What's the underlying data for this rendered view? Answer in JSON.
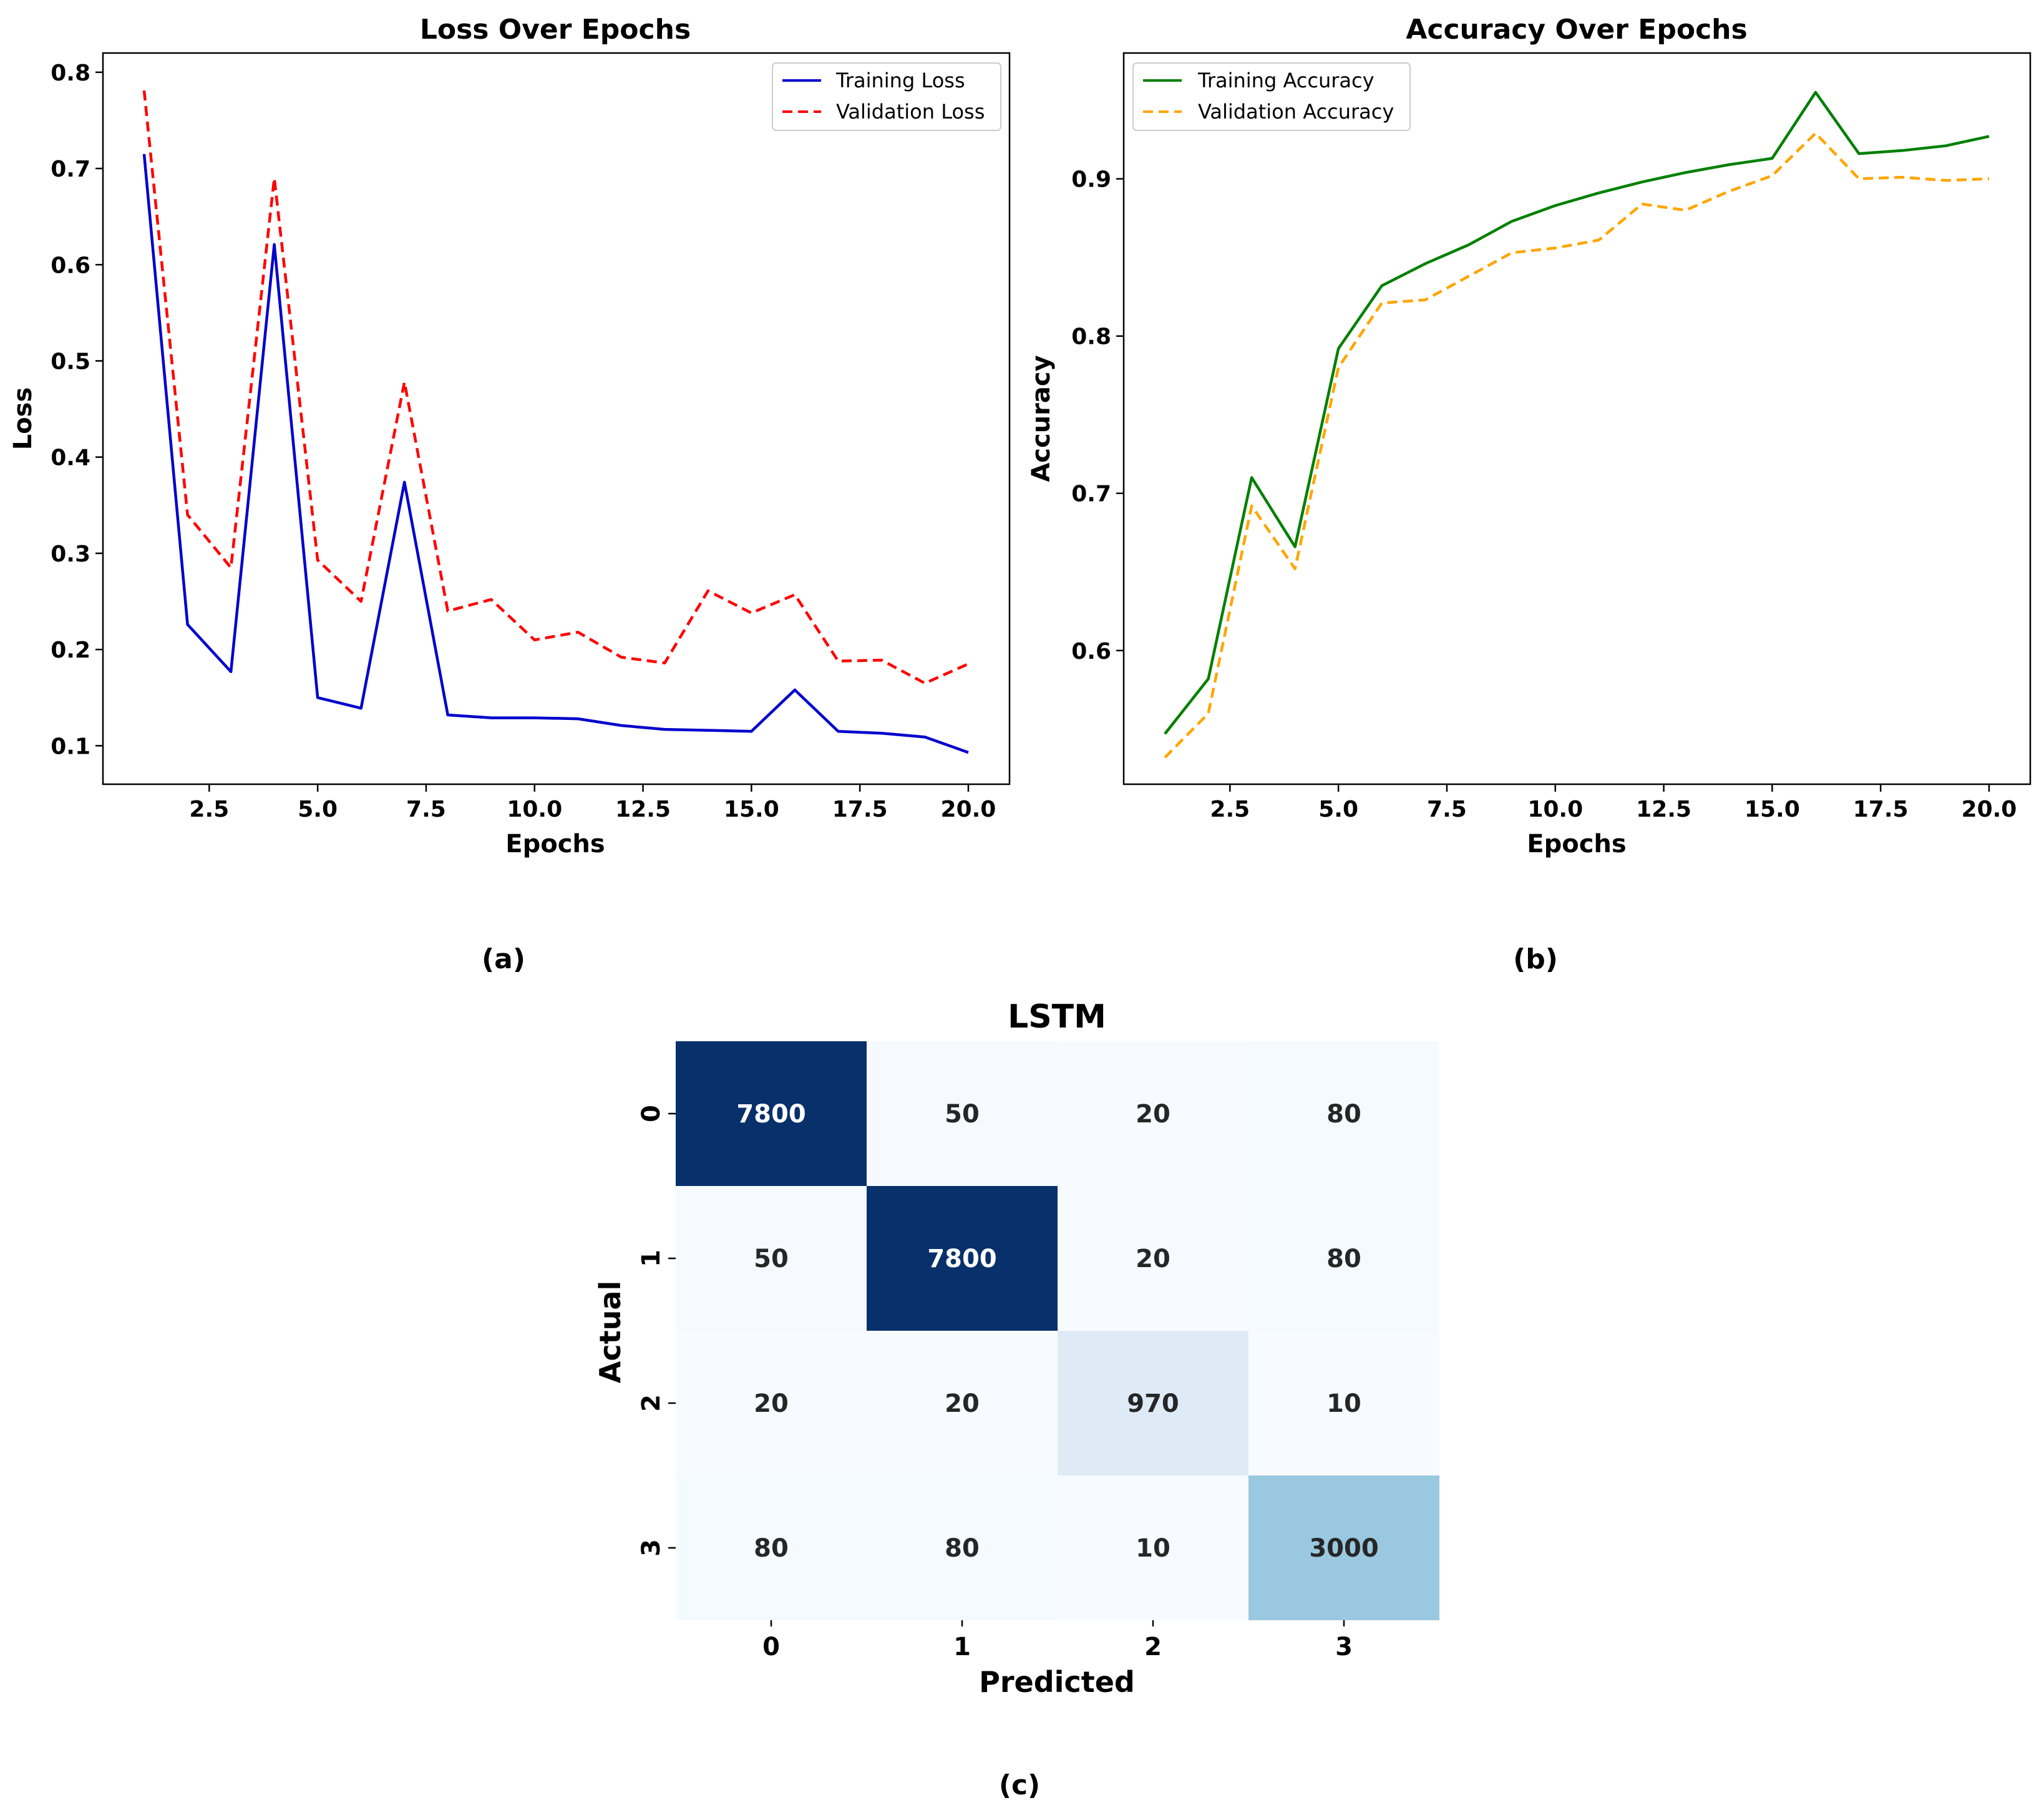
{
  "chart_data": [
    {
      "id": "loss",
      "type": "line",
      "title": "Loss Over Epochs",
      "xlabel": "Epochs",
      "ylabel": "Loss",
      "xlim": [
        0.05,
        20.95
      ],
      "ylim": [
        0.06,
        0.82
      ],
      "xticks": [
        "2.5",
        "5.0",
        "7.5",
        "10.0",
        "12.5",
        "15.0",
        "17.5",
        "20.0"
      ],
      "yticks": [
        "0.1",
        "0.2",
        "0.3",
        "0.4",
        "0.5",
        "0.6",
        "0.7",
        "0.8"
      ],
      "x": [
        1,
        2,
        3,
        4,
        5,
        6,
        7,
        8,
        9,
        10,
        11,
        12,
        13,
        14,
        15,
        16,
        17,
        18,
        19,
        20
      ],
      "legend": "top-right",
      "series": [
        {
          "name": "Training Loss",
          "color": "#0000cc",
          "style": "solid",
          "values": [
            0.715,
            0.226,
            0.177,
            0.621,
            0.15,
            0.139,
            0.374,
            0.132,
            0.129,
            0.129,
            0.128,
            0.121,
            0.117,
            0.116,
            0.115,
            0.158,
            0.115,
            0.113,
            0.109,
            0.093
          ]
        },
        {
          "name": "Validation Loss",
          "color": "#ff0000",
          "style": "dashed",
          "values": [
            0.781,
            0.34,
            0.285,
            0.69,
            0.293,
            0.25,
            0.478,
            0.24,
            0.252,
            0.21,
            0.218,
            0.192,
            0.186,
            0.261,
            0.238,
            0.257,
            0.188,
            0.189,
            0.165,
            0.185
          ]
        }
      ],
      "panel_label": "(a)"
    },
    {
      "id": "accuracy",
      "type": "line",
      "title": "Accuracy Over Epochs",
      "xlabel": "Epochs",
      "ylabel": "Accuracy",
      "xlim": [
        0.05,
        20.95
      ],
      "ylim": [
        0.515,
        0.98
      ],
      "xticks": [
        "2.5",
        "5.0",
        "7.5",
        "10.0",
        "12.5",
        "15.0",
        "17.5",
        "20.0"
      ],
      "yticks": [
        "0.6",
        "0.7",
        "0.8",
        "0.9"
      ],
      "x": [
        1,
        2,
        3,
        4,
        5,
        6,
        7,
        8,
        9,
        10,
        11,
        12,
        13,
        14,
        15,
        16,
        17,
        18,
        19,
        20
      ],
      "legend": "top-left",
      "series": [
        {
          "name": "Training Accuracy",
          "color": "#008000",
          "style": "solid",
          "values": [
            0.547,
            0.582,
            0.71,
            0.666,
            0.792,
            0.832,
            0.846,
            0.858,
            0.873,
            0.883,
            0.891,
            0.898,
            0.904,
            0.909,
            0.913,
            0.955,
            0.916,
            0.918,
            0.921,
            0.927
          ]
        },
        {
          "name": "Validation Accuracy",
          "color": "#ffa500",
          "style": "dashed",
          "values": [
            0.532,
            0.56,
            0.692,
            0.652,
            0.78,
            0.821,
            0.823,
            0.838,
            0.853,
            0.856,
            0.861,
            0.884,
            0.88,
            0.892,
            0.902,
            0.929,
            0.9,
            0.901,
            0.899,
            0.9
          ]
        }
      ],
      "panel_label": "(b)"
    },
    {
      "id": "confusion",
      "type": "heatmap",
      "title": "LSTM",
      "xlabel": "Predicted",
      "ylabel": "Actual",
      "row_labels": [
        "0",
        "1",
        "2",
        "3"
      ],
      "col_labels": [
        "0",
        "1",
        "2",
        "3"
      ],
      "matrix": [
        [
          7800,
          50,
          20,
          80
        ],
        [
          50,
          7800,
          20,
          80
        ],
        [
          20,
          20,
          970,
          10
        ],
        [
          80,
          80,
          10,
          3000
        ]
      ],
      "colormap": "Blues",
      "panel_label": "(c)"
    }
  ]
}
